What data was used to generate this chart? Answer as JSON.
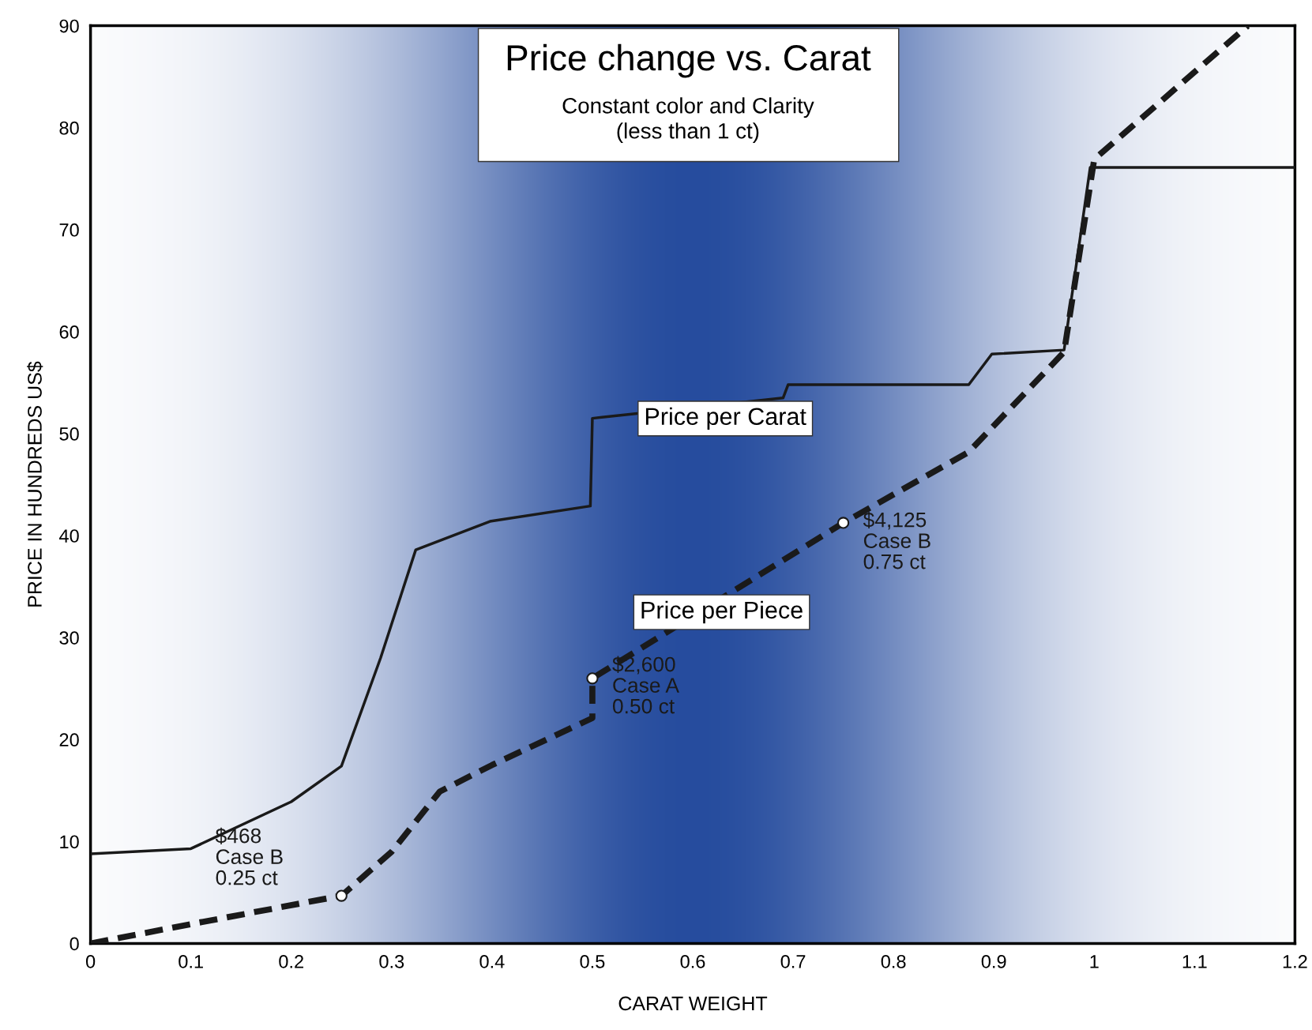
{
  "chart_data": {
    "type": "line",
    "title": "Price change vs. Carat",
    "subtitle": "Constant color and Clarity\n(less than 1 ct)",
    "xlabel": "CARAT WEIGHT",
    "ylabel": "PRICE IN HUNDREDS US$",
    "series": [
      {
        "name": "Price per Carat",
        "color": "#1a1a1a",
        "line_style": "solid",
        "x": [
          0,
          0.1,
          0.2,
          0.25,
          0.289,
          0.324,
          0.398,
          0.498,
          0.5,
          0.69,
          0.695,
          0.875,
          0.898,
          0.97,
          0.996,
          1.2
        ],
        "values": [
          8.8,
          9.3,
          13.9,
          17.4,
          28,
          38.6,
          41.4,
          42.9,
          51.5,
          53.5,
          54.8,
          54.8,
          57.8,
          58.2,
          76.1,
          76.1
        ]
      },
      {
        "name": "Price per Piece",
        "color": "#1a1a1a",
        "line_style": "dashed",
        "x": [
          0,
          0.1,
          0.25,
          0.3,
          0.348,
          0.4,
          0.5,
          0.5,
          0.75,
          0.875,
          0.97,
          1.0,
          1.153
        ],
        "values": [
          0,
          1.9,
          4.68,
          9,
          14.9,
          17.5,
          22.1,
          26,
          41.25,
          48.2,
          58,
          76.9,
          90
        ]
      },
      {
        "type": "scatter",
        "color": "#ffffff",
        "marker": "circle",
        "x": [
          0.25,
          0.5,
          0.75
        ],
        "values": [
          4.68,
          26,
          41.25
        ]
      }
    ],
    "annotations": [
      {
        "text": "$468\nCase B\n0.25 ct",
        "x": 0.25,
        "y": 4.68
      },
      {
        "text": "$2,600\nCase A\n0.50 ct",
        "x": 0.5,
        "y": 26
      },
      {
        "text": "$4,125\nCase B\n0.75 ct",
        "x": 0.75,
        "y": 41.25
      }
    ],
    "xlim": [
      0,
      1.2
    ],
    "ylim": [
      0,
      90
    ],
    "xticks": [
      0,
      0.1,
      0.2,
      0.3,
      0.4,
      0.5,
      0.6,
      0.7,
      0.8,
      0.9,
      1,
      1.1,
      1.2
    ],
    "yticks": [
      0,
      10,
      20,
      30,
      40,
      50,
      60,
      70,
      80,
      90
    ],
    "grid": false,
    "legend": false,
    "marker": "none"
  }
}
